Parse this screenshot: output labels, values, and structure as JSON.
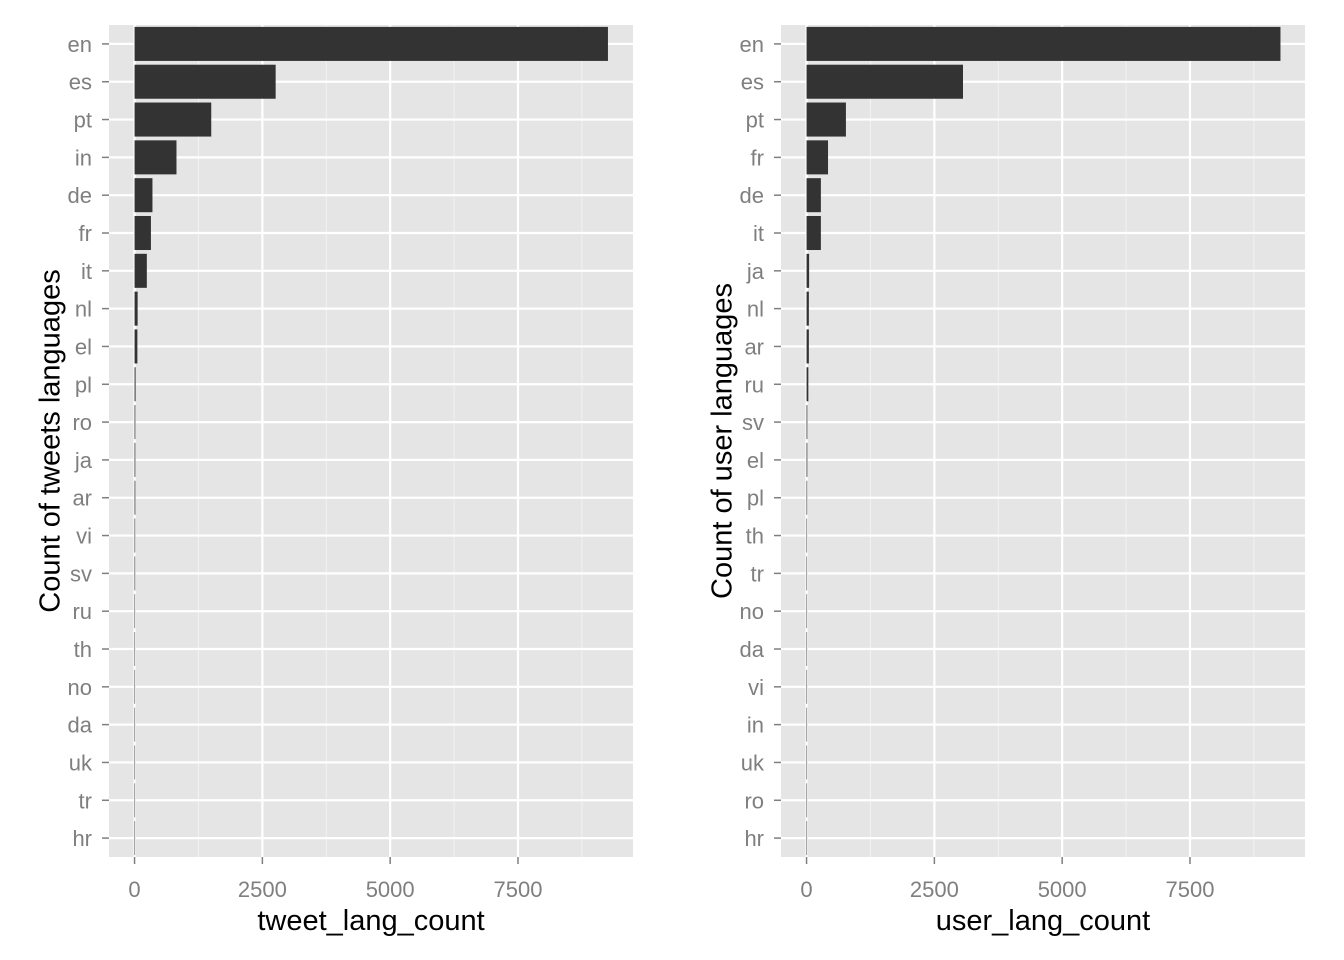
{
  "chart_data": [
    {
      "type": "bar",
      "orientation": "horizontal",
      "title": "",
      "xlabel": "tweet_lang_count",
      "ylabel": "Count of tweets languages",
      "categories": [
        "en",
        "es",
        "pt",
        "in",
        "de",
        "fr",
        "it",
        "nl",
        "el",
        "pl",
        "ro",
        "ja",
        "ar",
        "vi",
        "sv",
        "ru",
        "th",
        "no",
        "da",
        "uk",
        "tr",
        "hr"
      ],
      "values": [
        9260,
        2760,
        1500,
        820,
        350,
        320,
        240,
        60,
        55,
        20,
        15,
        15,
        15,
        12,
        12,
        10,
        1,
        1,
        1,
        1,
        1,
        1
      ],
      "xlim": [
        -500,
        9750
      ],
      "xticks": [
        0,
        2500,
        5000,
        7500
      ],
      "xtick_labels": [
        "0",
        "2500",
        "5000",
        "7500"
      ],
      "grid": true,
      "bar_color": "#333333",
      "panel_color": "#e5e5e5"
    },
    {
      "type": "bar",
      "orientation": "horizontal",
      "title": "",
      "xlabel": "user_lang_count",
      "ylabel": "Count of user languages",
      "categories": [
        "en",
        "es",
        "pt",
        "fr",
        "de",
        "it",
        "ja",
        "nl",
        "ar",
        "ru",
        "sv",
        "el",
        "pl",
        "th",
        "tr",
        "no",
        "da",
        "vi",
        "in",
        "uk",
        "ro",
        "hr"
      ],
      "values": [
        9270,
        3060,
        770,
        420,
        280,
        280,
        50,
        45,
        45,
        35,
        15,
        15,
        12,
        10,
        1,
        1,
        1,
        1,
        1,
        1,
        1,
        1
      ],
      "xlim": [
        -500,
        9750
      ],
      "xticks": [
        0,
        2500,
        5000,
        7500
      ],
      "xtick_labels": [
        "0",
        "2500",
        "5000",
        "7500"
      ],
      "grid": true,
      "bar_color": "#333333",
      "panel_color": "#e5e5e5"
    }
  ]
}
